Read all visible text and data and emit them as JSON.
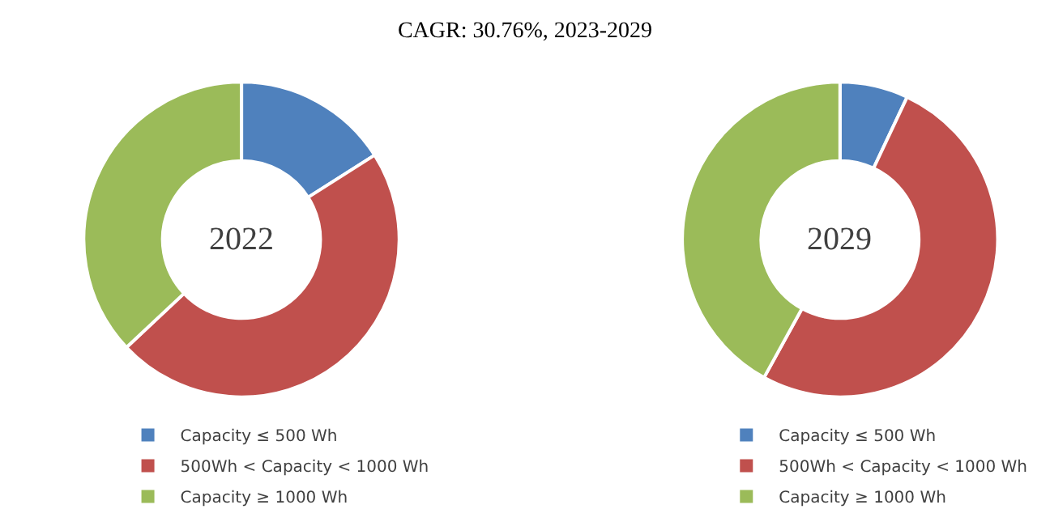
{
  "chart_data": [
    {
      "type": "donut",
      "title": "CAGR: 30.76%, 2023-2029",
      "annotations": [
        "2022"
      ],
      "categories": [
        "Capacity ≤ 500 Wh",
        "500Wh < Capacity < 1000 Wh",
        "Capacity ≥ 1000 Wh"
      ],
      "values": [
        16,
        47,
        37
      ],
      "colors": [
        "#4f81bd",
        "#c0504d",
        "#9bbb59"
      ],
      "legend": "bottom"
    },
    {
      "type": "donut",
      "annotations": [
        "2029"
      ],
      "categories": [
        "Capacity ≤ 500 Wh",
        "500Wh < Capacity < 1000 Wh",
        "Capacity ≥ 1000 Wh"
      ],
      "values": [
        7,
        51,
        42
      ],
      "colors": [
        "#4f81bd",
        "#c0504d",
        "#9bbb59"
      ],
      "legend": "bottom"
    }
  ]
}
